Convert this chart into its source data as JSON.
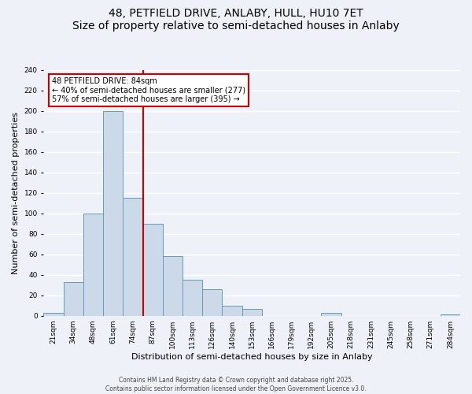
{
  "title": "48, PETFIELD DRIVE, ANLABY, HULL, HU10 7ET",
  "subtitle": "Size of property relative to semi-detached houses in Anlaby",
  "xlabel": "Distribution of semi-detached houses by size in Anlaby",
  "ylabel": "Number of semi-detached properties",
  "bin_labels": [
    "21sqm",
    "34sqm",
    "48sqm",
    "61sqm",
    "74sqm",
    "87sqm",
    "100sqm",
    "113sqm",
    "126sqm",
    "140sqm",
    "153sqm",
    "166sqm",
    "179sqm",
    "192sqm",
    "205sqm",
    "218sqm",
    "231sqm",
    "245sqm",
    "258sqm",
    "271sqm",
    "284sqm"
  ],
  "bar_heights": [
    3,
    33,
    100,
    200,
    115,
    90,
    58,
    35,
    26,
    10,
    7,
    0,
    0,
    0,
    3,
    0,
    0,
    0,
    0,
    0,
    1
  ],
  "bar_color": "#ccd9e8",
  "bar_edge_color": "#6699bb",
  "vline_x_index": 5,
  "vline_color": "#cc0000",
  "ylim": [
    0,
    240
  ],
  "yticks": [
    0,
    20,
    40,
    60,
    80,
    100,
    120,
    140,
    160,
    180,
    200,
    220,
    240
  ],
  "annotation_title": "48 PETFIELD DRIVE: 84sqm",
  "annotation_line1": "← 40% of semi-detached houses are smaller (277)",
  "annotation_line2": "57% of semi-detached houses are larger (395) →",
  "annotation_box_color": "#ffffff",
  "annotation_box_edge": "#cc0000",
  "footer1": "Contains HM Land Registry data © Crown copyright and database right 2025.",
  "footer2": "Contains public sector information licensed under the Open Government Licence v3.0.",
  "background_color": "#eef2f8",
  "grid_color": "#ffffff",
  "title_fontsize": 10,
  "axis_label_fontsize": 8,
  "tick_fontsize": 6.5,
  "annotation_fontsize": 7,
  "footer_fontsize": 5.5
}
